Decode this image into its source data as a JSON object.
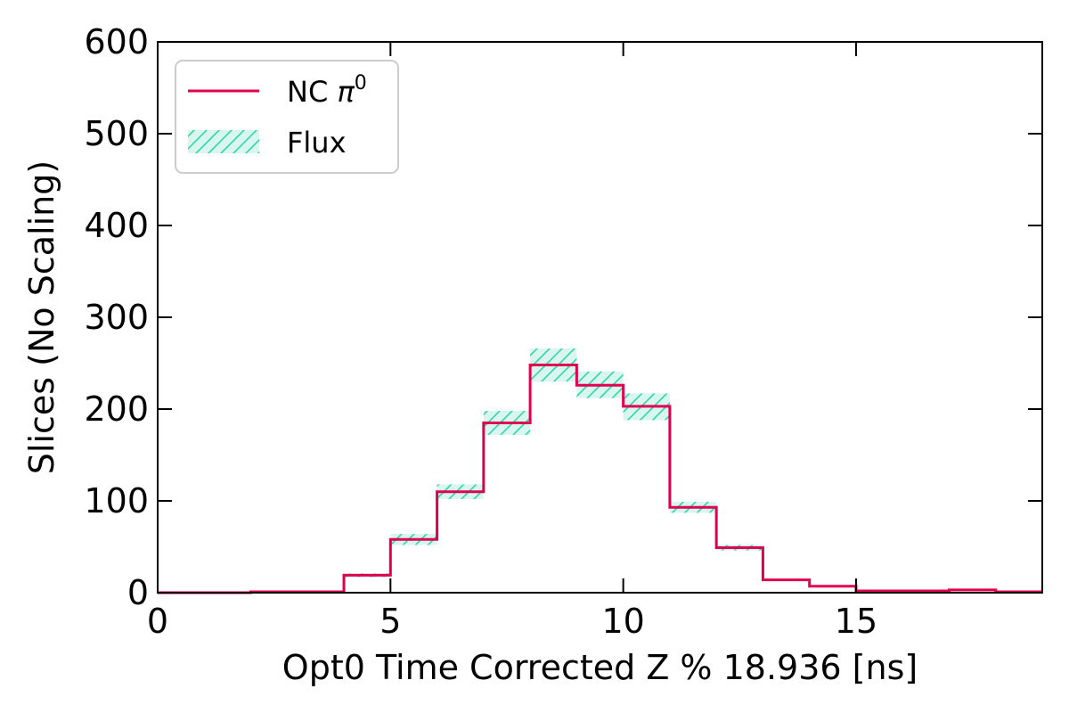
{
  "chart_data": {
    "type": "bar",
    "xlabel": "Opt0 Time Corrected Z % 18.936 [ns]",
    "ylabel": "Slices (No Scaling)",
    "xlim": [
      0,
      19
    ],
    "ylim": [
      0,
      600
    ],
    "x_ticks": [
      0,
      5,
      10,
      15
    ],
    "y_ticks": [
      0,
      100,
      200,
      300,
      400,
      500,
      600
    ],
    "bin_edges": [
      0,
      1,
      2,
      3,
      4,
      5,
      6,
      7,
      8,
      9,
      10,
      11,
      12,
      13,
      14,
      15,
      16,
      17,
      18,
      19
    ],
    "grid": false,
    "legend_position": "top-left",
    "series": [
      {
        "name": "NC π⁰",
        "legend_base": "NC ",
        "legend_symbol": "π",
        "legend_sup": "0",
        "color": "#e0004e",
        "values": [
          0,
          0,
          1,
          1,
          19,
          58,
          110,
          185,
          248,
          226,
          203,
          93,
          49,
          14,
          7,
          2,
          2,
          3,
          1
        ]
      }
    ],
    "band": {
      "name": "Flux",
      "color": "#2ed8a6",
      "fill": "#d9f6ee",
      "lower": [
        0,
        0,
        1,
        1,
        17,
        52,
        102,
        172,
        230,
        212,
        188,
        87,
        46,
        13,
        6,
        2,
        2,
        2,
        1
      ],
      "upper": [
        0,
        0,
        1,
        1,
        21,
        64,
        118,
        198,
        266,
        241,
        217,
        99,
        52,
        15,
        8,
        2,
        2,
        3,
        1
      ]
    }
  }
}
